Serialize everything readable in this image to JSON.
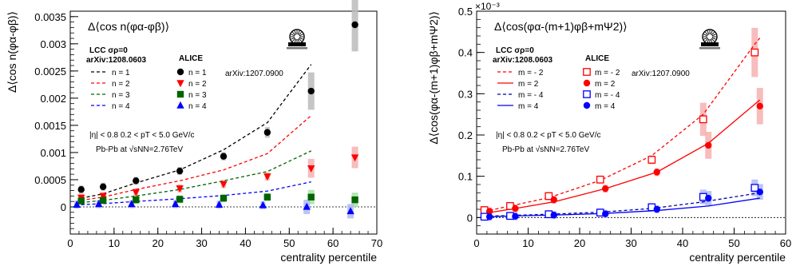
{
  "chart_data": [
    {
      "type": "scatter",
      "title": "Δ⟨cos n(φα-φβ)⟩",
      "xlabel": "centrality percentile",
      "ylabel": "Δ⟨cos n(φα-φβ)⟩",
      "xlim": [
        0,
        70
      ],
      "ylim": [
        -0.0005,
        0.0036
      ],
      "xticks": [
        "0",
        "10",
        "20",
        "30",
        "40",
        "50",
        "60",
        "70"
      ],
      "yticks": [
        "0",
        "0.0005",
        "0.001",
        "0.0015",
        "0.002",
        "0.0025",
        "0.003",
        "0.0035"
      ],
      "grid": false,
      "legend_position": "top-left",
      "lcc_header": "LCC  σρ=0",
      "lcc_ref": "arXiv:1208.0603",
      "alice_header": "ALICE",
      "alice_ref": "arXiv:1207.0900",
      "cuts": "|η| < 0.8   0.2 < pT < 5.0 GeV/c",
      "system": "Pb-Pb at √sNN=2.76TeV",
      "lcc_curves": [
        {
          "name": "n = 1",
          "color": "#000000",
          "x": [
            2.5,
            7.5,
            15,
            25,
            35,
            45,
            55
          ],
          "values": [
            0.00016,
            0.00024,
            0.00044,
            0.00068,
            0.00105,
            0.00155,
            0.00262
          ]
        },
        {
          "name": "n = 2",
          "color": "#ff0000",
          "x": [
            2.5,
            7.5,
            15,
            25,
            35,
            45,
            55
          ],
          "values": [
            0.00012,
            0.00018,
            0.00032,
            0.00048,
            0.00068,
            0.00098,
            0.00168
          ]
        },
        {
          "name": "n = 3",
          "color": "#006400",
          "x": [
            2.5,
            7.5,
            15,
            25,
            35,
            45,
            55
          ],
          "values": [
            8e-05,
            0.00012,
            0.0002,
            0.00032,
            0.00048,
            0.00065,
            0.00103
          ]
        },
        {
          "name": "n = 4",
          "color": "#0000ff",
          "x": [
            2.5,
            7.5,
            15,
            25,
            35,
            45,
            55
          ],
          "values": [
            4e-05,
            6e-05,
            0.0001,
            0.00015,
            0.00021,
            0.00029,
            0.00046
          ]
        }
      ],
      "alice_series": [
        {
          "name": "n = 1",
          "color": "#000000",
          "marker": "circle",
          "x": [
            2.5,
            7.5,
            15,
            25,
            35,
            45,
            55,
            65
          ],
          "values": [
            0.00032,
            0.00037,
            0.00048,
            0.00066,
            0.00093,
            0.00137,
            0.00213,
            0.00335
          ]
        },
        {
          "name": "n = 2",
          "color": "#ff0000",
          "marker": "triangle-down",
          "x": [
            2.5,
            7.5,
            15,
            25,
            35,
            45,
            55,
            65
          ],
          "values": [
            0.00017,
            0.0002,
            0.00027,
            0.00034,
            0.00042,
            0.00056,
            0.00071,
            0.00091
          ]
        },
        {
          "name": "n = 3",
          "color": "#006400",
          "marker": "square",
          "x": [
            2.5,
            7.5,
            15,
            25,
            35,
            45,
            55,
            65
          ],
          "values": [
            0.00011,
            0.00012,
            0.00013,
            0.00014,
            0.00016,
            0.00018,
            0.00018,
            0.00013
          ]
        },
        {
          "name": "n = 4",
          "color": "#0000ff",
          "marker": "triangle-up",
          "x": [
            1.5,
            6.5,
            14,
            24,
            34,
            44,
            54,
            64
          ],
          "values": [
            4e-05,
            5e-05,
            5e-05,
            5e-05,
            4e-05,
            3e-05,
            0.0,
            -8e-05
          ]
        }
      ]
    },
    {
      "type": "scatter",
      "title": "Δ⟨cos(φα-(m+1)φβ+mΨ2)⟩",
      "xlabel": "centrality percentile",
      "ylabel": "Δ⟨cos(φα-(m+1)φβ+mΨ2)⟩",
      "yexponent": "×10⁻³",
      "xlim": [
        0,
        60
      ],
      "ylim": [
        -0.04,
        0.5
      ],
      "xticks": [
        "0",
        "10",
        "20",
        "30",
        "40",
        "50",
        "60"
      ],
      "yticks": [
        "0",
        "0.1",
        "0.2",
        "0.3",
        "0.4",
        "0.5"
      ],
      "grid": false,
      "legend_position": "top-left",
      "lcc_header": "LCC  σρ=0",
      "lcc_ref": "arXiv:1208.0603",
      "alice_header": "ALICE",
      "alice_ref": "arXiv:1207.0900",
      "cuts": "|η| < 0.8   0.2 < pT < 5.0 GeV/c",
      "system": "Pb-Pb at √sNN=2.76TeV",
      "lcc_curves": [
        {
          "name": "m = - 2",
          "color": "#ff0000",
          "dash": true,
          "x": [
            1.5,
            6.5,
            14,
            24,
            34,
            44,
            54,
            55
          ],
          "values": [
            0.015,
            0.028,
            0.048,
            0.09,
            0.15,
            0.25,
            0.42,
            0.435
          ]
        },
        {
          "name": "m = 2",
          "color": "#ff0000",
          "dash": false,
          "x": [
            2.5,
            7.5,
            15,
            25,
            35,
            45,
            55
          ],
          "values": [
            0.012,
            0.022,
            0.038,
            0.07,
            0.11,
            0.18,
            0.285
          ]
        },
        {
          "name": "m = - 4",
          "color": "#0000aa",
          "dash": true,
          "x": [
            1.5,
            6.5,
            14,
            24,
            34,
            44,
            54,
            55
          ],
          "values": [
            0.003,
            0.005,
            0.008,
            0.013,
            0.022,
            0.038,
            0.058,
            0.06
          ]
        },
        {
          "name": "m = 4",
          "color": "#0000ff",
          "dash": false,
          "x": [
            2.5,
            7.5,
            15,
            25,
            35,
            45,
            55
          ],
          "values": [
            0.002,
            0.004,
            0.006,
            0.01,
            0.017,
            0.028,
            0.047
          ]
        }
      ],
      "alice_series": [
        {
          "name": "m = - 2",
          "color": "#ff0000",
          "marker": "open-square",
          "x": [
            1.5,
            6.5,
            14,
            24,
            34,
            44,
            54
          ],
          "values": [
            0.018,
            0.028,
            0.052,
            0.092,
            0.14,
            0.238,
            0.4
          ]
        },
        {
          "name": "m = 2",
          "color": "#ff0000",
          "marker": "circle",
          "x": [
            2.5,
            7.5,
            15,
            25,
            35,
            45,
            55
          ],
          "values": [
            0.015,
            0.022,
            0.043,
            0.07,
            0.11,
            0.175,
            0.27
          ]
        },
        {
          "name": "m = - 4",
          "color": "#0000ff",
          "marker": "open-square",
          "x": [
            1.5,
            6.5,
            14,
            24,
            34,
            44,
            54
          ],
          "values": [
            0.002,
            0.004,
            0.008,
            0.012,
            0.025,
            0.05,
            0.072
          ]
        },
        {
          "name": "m = 4",
          "color": "#0000ff",
          "marker": "circle",
          "x": [
            2.5,
            7.5,
            15,
            25,
            35,
            45,
            55
          ],
          "values": [
            0.002,
            0.003,
            0.006,
            0.009,
            0.02,
            0.047,
            0.062
          ]
        }
      ]
    }
  ]
}
